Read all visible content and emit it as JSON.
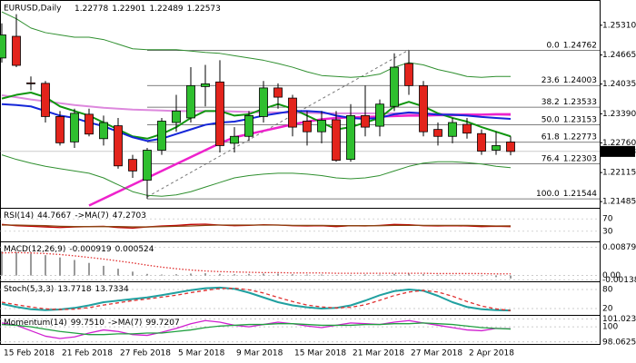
{
  "chart_data": [
    {
      "type": "candlestick",
      "title": "EURUSD,Daily",
      "categories": [
        "15 Feb 2018",
        null,
        null,
        null,
        "21 Feb 2018",
        null,
        null,
        null,
        "27 Feb 2018",
        null,
        null,
        null,
        "5 Mar 2018",
        null,
        null,
        null,
        "9 Mar 2018",
        null,
        null,
        null,
        "15 Mar 2018",
        null,
        null,
        null,
        "21 Mar 2018",
        null,
        null,
        null,
        "27 Mar 2018",
        null,
        null,
        null,
        "2 Apr 2018",
        null,
        null,
        null
      ],
      "open": [
        1.246,
        1.2507,
        1.2406,
        1.2405,
        1.2333,
        1.2278,
        1.2338,
        1.2285,
        1.2313,
        1.224,
        1.2195,
        1.226,
        1.232,
        1.233,
        1.2398,
        1.2408,
        1.2275,
        1.229,
        1.2333,
        1.2395,
        1.2373,
        1.2323,
        1.23,
        1.2326,
        1.224,
        1.2335,
        1.2312,
        1.2355,
        1.2448,
        1.24,
        1.2305,
        1.229,
        1.2316,
        1.2296,
        1.226,
        1.22778
      ],
      "high": [
        1.2535,
        1.2555,
        1.242,
        1.241,
        1.2345,
        1.235,
        1.235,
        1.2335,
        1.233,
        1.225,
        1.2265,
        1.233,
        1.238,
        1.244,
        1.2445,
        1.2455,
        1.231,
        1.2345,
        1.241,
        1.2405,
        1.238,
        1.2345,
        1.2345,
        1.2345,
        1.236,
        1.24,
        1.237,
        1.247,
        1.24762,
        1.241,
        1.232,
        1.233,
        1.233,
        1.2305,
        1.23,
        1.22901
      ],
      "low": [
        1.245,
        1.244,
        1.239,
        1.232,
        1.227,
        1.2265,
        1.229,
        1.227,
        1.222,
        1.22,
        1.21544,
        1.225,
        1.23,
        1.232,
        1.2355,
        1.2255,
        1.2255,
        1.228,
        1.232,
        1.235,
        1.229,
        1.227,
        1.2275,
        1.2235,
        1.2235,
        1.229,
        1.229,
        1.2345,
        1.238,
        1.229,
        1.227,
        1.2275,
        1.2285,
        1.225,
        1.225,
        1.22489
      ],
      "close": [
        1.251,
        1.2444,
        1.2404,
        1.2333,
        1.2276,
        1.234,
        1.2295,
        1.232,
        1.2226,
        1.2215,
        1.226,
        1.2323,
        1.2345,
        1.24,
        1.2404,
        1.227,
        1.229,
        1.2335,
        1.2395,
        1.2375,
        1.231,
        1.23,
        1.2325,
        1.2238,
        1.2335,
        1.231,
        1.236,
        1.244,
        1.24,
        1.23,
        1.229,
        1.232,
        1.2297,
        1.2258,
        1.227,
        1.22573
      ],
      "up_color": "#2fbf2f",
      "down_color": "#e3241c",
      "lines": [
        {
          "color": "#dd88dd",
          "width": 2,
          "values": [
            1.2379,
            1.2375,
            1.237,
            1.2366,
            1.2362,
            1.2358,
            1.2355,
            1.2352,
            1.235,
            1.2348,
            1.2347,
            1.2346,
            1.2345,
            1.2345,
            1.2345,
            1.2345,
            1.2344,
            1.2343,
            1.2342,
            1.2342,
            1.2341,
            1.2341,
            1.234,
            1.234,
            1.234,
            1.234,
            1.234,
            1.234,
            1.234,
            1.2339,
            1.2339,
            1.2338,
            1.2338,
            1.2337,
            1.2337,
            1.2336
          ]
        },
        {
          "color": "#ee22cc",
          "width": 2.5,
          "values": [
            null,
            null,
            null,
            null,
            null,
            null,
            1.214,
            1.2155,
            1.217,
            1.2185,
            1.22,
            1.2215,
            1.223,
            1.2245,
            1.226,
            1.2275,
            1.2288,
            1.2295,
            1.2302,
            1.2309,
            1.2316,
            1.2322,
            1.2327,
            1.233,
            1.2331,
            1.2332,
            1.2333,
            1.2334,
            1.2335,
            1.2335,
            1.2336,
            1.2336,
            1.2337,
            1.2337,
            1.2338,
            1.2338
          ]
        },
        {
          "color": "#2f8f2f",
          "width": 1,
          "values": [
            1.256,
            1.2545,
            1.2525,
            1.2515,
            1.251,
            1.2505,
            1.2505,
            1.25,
            1.249,
            1.248,
            1.2478,
            1.2478,
            1.2478,
            1.2475,
            1.2472,
            1.247,
            1.2465,
            1.246,
            1.2455,
            1.2448,
            1.244,
            1.243,
            1.2422,
            1.242,
            1.2418,
            1.242,
            1.2425,
            1.244,
            1.245,
            1.2445,
            1.2435,
            1.2428,
            1.242,
            1.2418,
            1.242,
            1.242
          ]
        },
        {
          "color": "#2f8f2f",
          "width": 1,
          "values": [
            1.225,
            1.224,
            1.2232,
            1.2225,
            1.222,
            1.2215,
            1.221,
            1.22,
            1.2185,
            1.217,
            1.2162,
            1.216,
            1.2163,
            1.217,
            1.218,
            1.219,
            1.22,
            1.2205,
            1.2208,
            1.221,
            1.221,
            1.2208,
            1.2205,
            1.22,
            1.2198,
            1.22,
            1.2205,
            1.2215,
            1.2225,
            1.2232,
            1.2235,
            1.2235,
            1.2233,
            1.223,
            1.2225,
            1.2222
          ]
        },
        {
          "color": "#10960f",
          "width": 2,
          "values": [
            1.2372,
            1.238,
            1.2385,
            1.2375,
            1.2355,
            1.2345,
            1.2335,
            1.232,
            1.2305,
            1.229,
            1.2285,
            1.2295,
            1.231,
            1.233,
            1.2345,
            1.2345,
            1.2335,
            1.2338,
            1.235,
            1.236,
            1.235,
            1.2335,
            1.232,
            1.2305,
            1.231,
            1.232,
            1.233,
            1.2355,
            1.2365,
            1.2355,
            1.234,
            1.233,
            1.2322,
            1.231,
            1.23,
            1.229
          ]
        },
        {
          "color": "#1426d8",
          "width": 2,
          "values": [
            1.236,
            1.2358,
            1.2355,
            1.2345,
            1.2335,
            1.233,
            1.232,
            1.2312,
            1.23,
            1.2288,
            1.228,
            1.2285,
            1.2295,
            1.2305,
            1.2315,
            1.232,
            1.2322,
            1.2328,
            1.2335,
            1.234,
            1.2345,
            1.2345,
            1.2343,
            1.2335,
            1.233,
            1.2328,
            1.233,
            1.2338,
            1.2342,
            1.234,
            1.2337,
            1.2337,
            1.2335,
            1.2332,
            1.233,
            1.2328
          ]
        }
      ],
      "fibonacci": {
        "ratios": [
          "0.0",
          "23.6",
          "38.2",
          "50.0",
          "61.8",
          "76.4",
          "100.0"
        ],
        "prices": [
          1.24762,
          1.24003,
          1.23533,
          1.23153,
          1.22773,
          1.22303,
          1.21544
        ],
        "color": "#555555"
      },
      "ylim": [
        1.2137,
        1.257
      ],
      "yticks": [
        {
          "value": 1.2531,
          "label": "1.25310"
        },
        1.24665,
        {
          "value": 1.24035,
          "label": "1.24035"
        },
        {
          "value": 1.2339,
          "label": "1.23390"
        },
        {
          "value": 1.2276,
          "label": "1.22760"
        },
        1.22115,
        1.21485
      ]
    },
    {
      "type": "line",
      "title": "RSI(14)",
      "ylim": [
        0,
        100
      ],
      "yticks": [
        70,
        30
      ],
      "series": [
        {
          "color": "#c00000",
          "style": "line",
          "readout": 44.7667,
          "values": [
            52,
            48,
            46,
            44,
            42,
            44,
            45,
            46,
            42,
            40,
            44,
            47,
            49,
            52,
            53,
            50,
            48,
            49,
            51,
            50,
            48,
            47,
            48,
            45,
            48,
            47,
            49,
            52,
            51,
            48,
            47,
            48,
            47,
            45,
            46,
            44.7667
          ]
        },
        {
          "label": "->MA(7)",
          "color": "#8b4513",
          "style": "line",
          "readout": 47.2703,
          "values": [
            50,
            50,
            49,
            48,
            46,
            45,
            45,
            45,
            45,
            44,
            44,
            45,
            46,
            47,
            49,
            50,
            50,
            50,
            50,
            50,
            49,
            49,
            49,
            48,
            48,
            48,
            48,
            49,
            49,
            49,
            49,
            49,
            49,
            48,
            47,
            47.2703
          ]
        }
      ]
    },
    {
      "type": "line",
      "title": "MACD(12,26,9)",
      "ylim": [
        -0.0018,
        0.01
      ],
      "yticks": [
        0.008795,
        {
          "value": 0,
          "label": "0.00"
        },
        -0.001382
      ],
      "series": [
        {
          "color": "#9a9a9a",
          "style": "histogram",
          "readout": -0.000919,
          "values": [
            0.0075,
            0.0072,
            0.0068,
            0.0063,
            0.0056,
            0.0048,
            0.0039,
            0.003,
            0.0021,
            0.0012,
            0.0005,
            0.0003,
            0.0004,
            0.0006,
            0.0007,
            0.0005,
            0.0004,
            0.0005,
            0.0006,
            0.0006,
            0.0004,
            0.0003,
            0.0003,
            0.0001,
            0.0002,
            0.0003,
            0.0003,
            0.0005,
            0.0006,
            0.0004,
            0.0002,
            0.0001,
            0.0,
            -0.0002,
            -0.0005,
            -0.000919
          ]
        },
        {
          "color": "#e03030",
          "style": "dotted",
          "readout": 0.000524,
          "values": [
            0.007,
            0.0071,
            0.007,
            0.0068,
            0.0065,
            0.0061,
            0.0056,
            0.0051,
            0.0045,
            0.0039,
            0.0032,
            0.0026,
            0.0021,
            0.0017,
            0.0014,
            0.0012,
            0.0011,
            0.001,
            0.0009,
            0.0009,
            0.0008,
            0.0008,
            0.0008,
            0.0007,
            0.0007,
            0.0007,
            0.0007,
            0.0007,
            0.0007,
            0.0007,
            0.0006,
            0.0006,
            0.0006,
            0.0006,
            0.0005,
            0.000524
          ]
        }
      ]
    },
    {
      "type": "line",
      "title": "Stoch(5,3,3)",
      "ylim": [
        0,
        100
      ],
      "yticks": [
        80,
        20
      ],
      "series": [
        {
          "color": "#20a0a0",
          "style": "line",
          "readout": 13.7718,
          "values": [
            35,
            25,
            18,
            15,
            17,
            22,
            30,
            40,
            45,
            50,
            55,
            62,
            70,
            78,
            84,
            86,
            82,
            70,
            55,
            40,
            30,
            24,
            20,
            22,
            30,
            45,
            62,
            75,
            80,
            76,
            60,
            40,
            25,
            18,
            15,
            13.7718
          ]
        },
        {
          "color": "#e03030",
          "style": "dashed",
          "readout": 13.7334,
          "values": [
            40,
            32,
            25,
            19,
            17,
            18,
            23,
            31,
            38,
            45,
            50,
            56,
            62,
            70,
            77,
            83,
            84,
            79,
            69,
            55,
            42,
            31,
            25,
            22,
            24,
            32,
            46,
            61,
            72,
            77,
            72,
            59,
            42,
            28,
            19,
            13.7334
          ]
        }
      ]
    },
    {
      "type": "line",
      "title": "Momentum(14)",
      "ylim": [
        97.8,
        101.3
      ],
      "yticks": [
        101.0237,
        100,
        98.0625
      ],
      "series": [
        {
          "color": "#d020d0",
          "style": "line",
          "readout": {
            "value": 99.751,
            "label": "99.7510"
          },
          "values": [
            100.5,
            100.2,
            99.5,
            98.8,
            98.5,
            98.7,
            99.2,
            99.6,
            99.4,
            99.0,
            98.9,
            99.3,
            99.8,
            100.4,
            100.8,
            100.6,
            100.2,
            100.0,
            100.3,
            100.6,
            100.4,
            100.1,
            99.9,
            100.2,
            100.5,
            100.4,
            100.3,
            100.6,
            100.8,
            100.5,
            100.2,
            99.9,
            99.6,
            99.5,
            99.8,
            99.751
          ]
        },
        {
          "label": "->MA(7)",
          "color": "#20a040",
          "style": "line",
          "readout": 99.7207,
          "values": [
            100.3,
            100.2,
            100.0,
            99.7,
            99.4,
            99.2,
            99.0,
            99.0,
            99.1,
            99.1,
            99.2,
            99.2,
            99.4,
            99.6,
            99.9,
            100.1,
            100.2,
            100.3,
            100.3,
            100.4,
            100.4,
            100.3,
            100.2,
            100.2,
            100.2,
            100.3,
            100.3,
            100.4,
            100.4,
            100.5,
            100.4,
            100.3,
            100.1,
            99.9,
            99.8,
            99.7207
          ]
        }
      ]
    }
  ]
}
